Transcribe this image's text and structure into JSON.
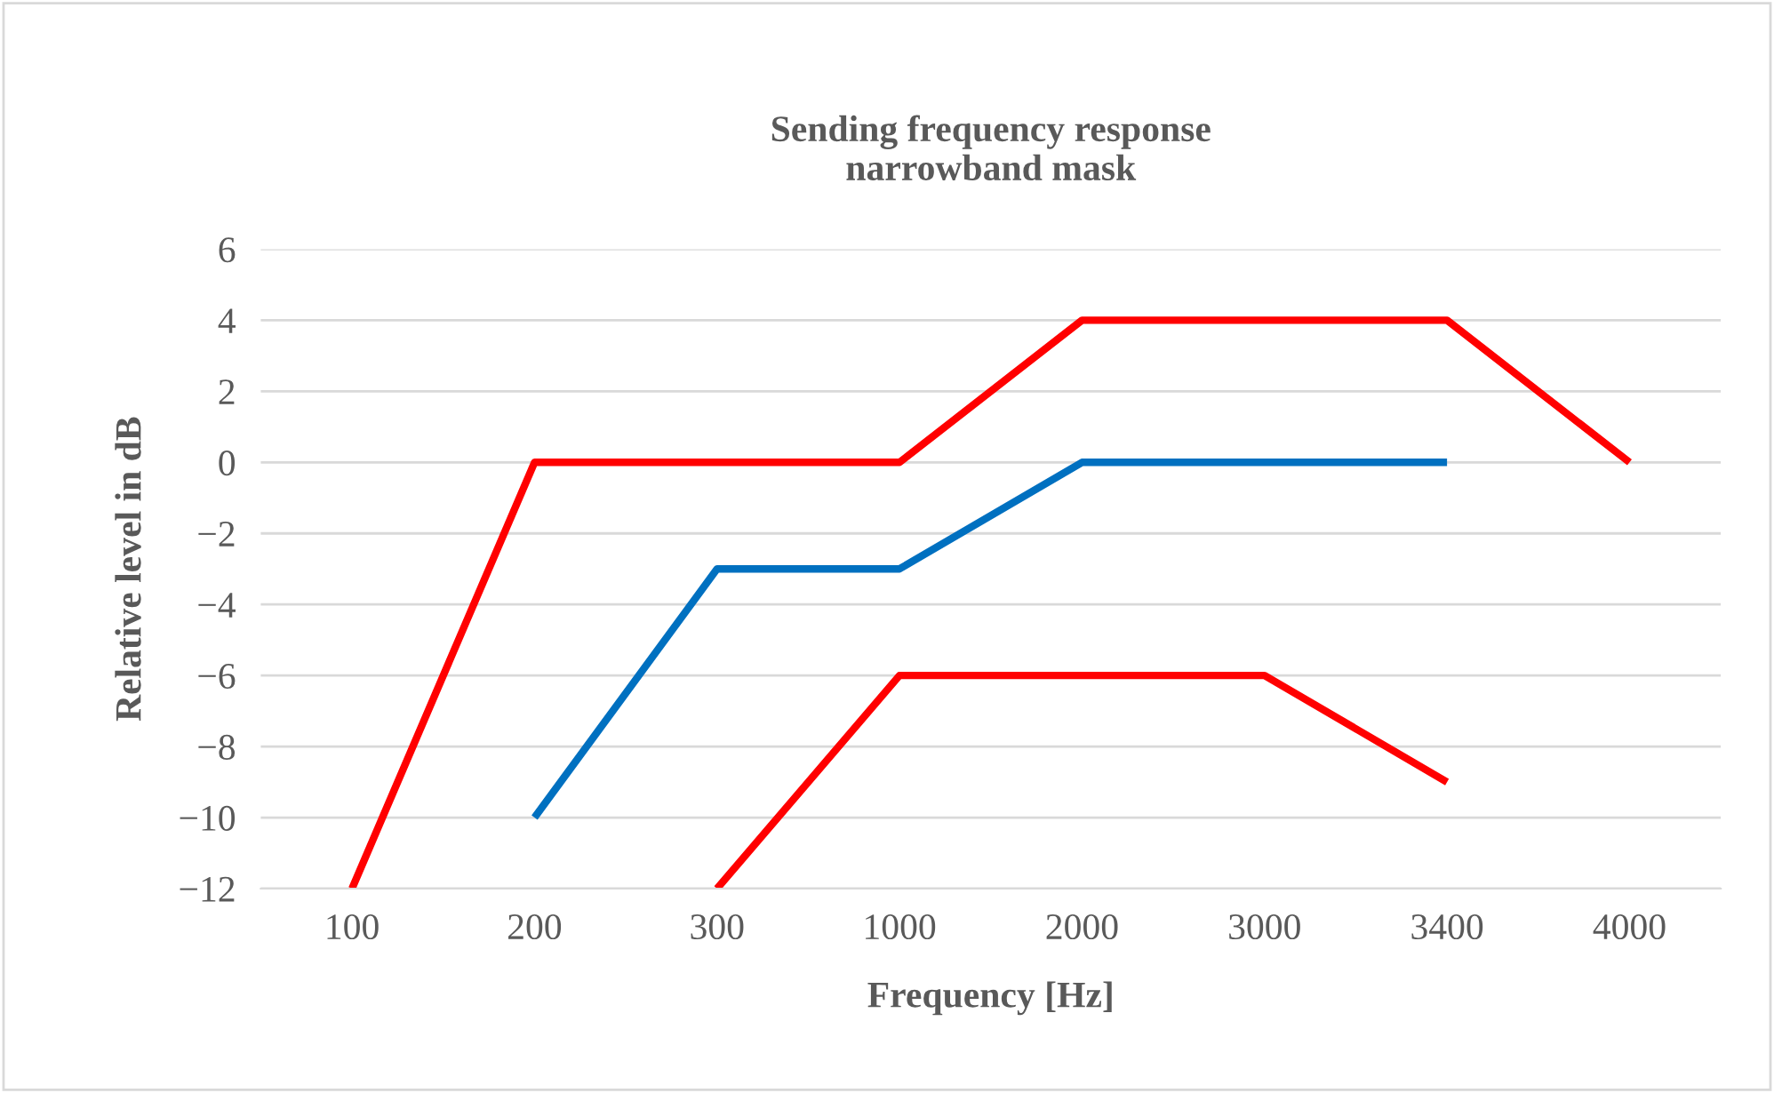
{
  "chart_data": {
    "type": "line",
    "title": "Sending frequency response\nnarrowband mask",
    "xlabel": "Frequency [Hz]",
    "ylabel": "Relative level in dB",
    "categories": [
      "100",
      "200",
      "300",
      "1000",
      "2000",
      "3000",
      "3400",
      "4000"
    ],
    "ylim": [
      -12,
      6
    ],
    "yticks": [
      {
        "value": -12,
        "label": "−12"
      },
      {
        "value": -10,
        "label": "−10"
      },
      {
        "value": -8,
        "label": "−8"
      },
      {
        "value": -6,
        "label": "−6"
      },
      {
        "value": -4,
        "label": "−4"
      },
      {
        "value": -2,
        "label": "−2"
      },
      0,
      2,
      4,
      6
    ],
    "grid": "y",
    "marker": "none",
    "line_style": "solid",
    "series": [
      {
        "color": "#ff0000",
        "values": [
          -12,
          0,
          0,
          0,
          4,
          4,
          4,
          0
        ]
      },
      {
        "color": "#0070c0",
        "values": [
          null,
          -10,
          -3,
          -3,
          0,
          0,
          0,
          null
        ]
      },
      {
        "color": "#ff0000",
        "values": [
          null,
          null,
          -12,
          -6,
          -6,
          -6,
          -9,
          null
        ]
      }
    ]
  }
}
